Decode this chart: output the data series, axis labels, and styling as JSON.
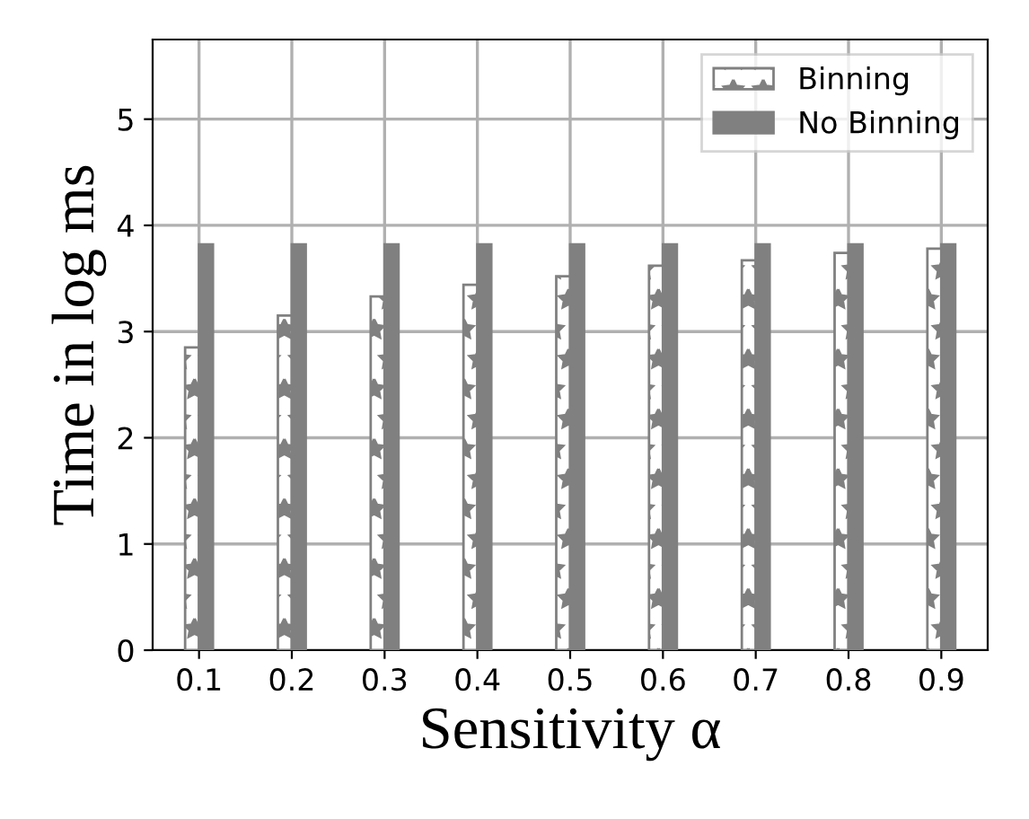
{
  "chart_data": {
    "type": "bar",
    "xlabel": "Sensitivity α",
    "ylabel": "Time in log ms",
    "categories": [
      "0.1",
      "0.2",
      "0.3",
      "0.4",
      "0.5",
      "0.6",
      "0.7",
      "0.8",
      "0.9"
    ],
    "series": [
      {
        "name": "Binning",
        "color": "#808080",
        "values": [
          2.85,
          3.15,
          3.33,
          3.44,
          3.52,
          3.62,
          3.67,
          3.74,
          3.78
        ]
      },
      {
        "name": "No Binning",
        "color": "#808080",
        "values": [
          3.82,
          3.82,
          3.82,
          3.82,
          3.82,
          3.82,
          3.82,
          3.82,
          3.82
        ]
      }
    ],
    "ylim": [
      0,
      5.75
    ],
    "yticks": [
      0,
      1,
      2,
      3,
      4,
      5
    ],
    "grid": true,
    "legend": "top right"
  }
}
